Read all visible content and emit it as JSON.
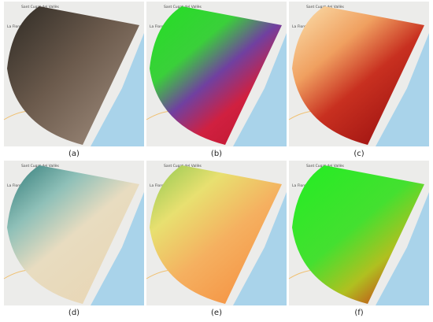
{
  "map_labels": [
    "Sant Cugat del Vallès",
    "La Floresta"
  ],
  "panels": [
    {
      "caption": "(a)"
    },
    {
      "caption": "(b)"
    },
    {
      "caption": "(c)"
    },
    {
      "caption": "(d)"
    },
    {
      "caption": "(e)"
    },
    {
      "caption": "(f)"
    }
  ]
}
